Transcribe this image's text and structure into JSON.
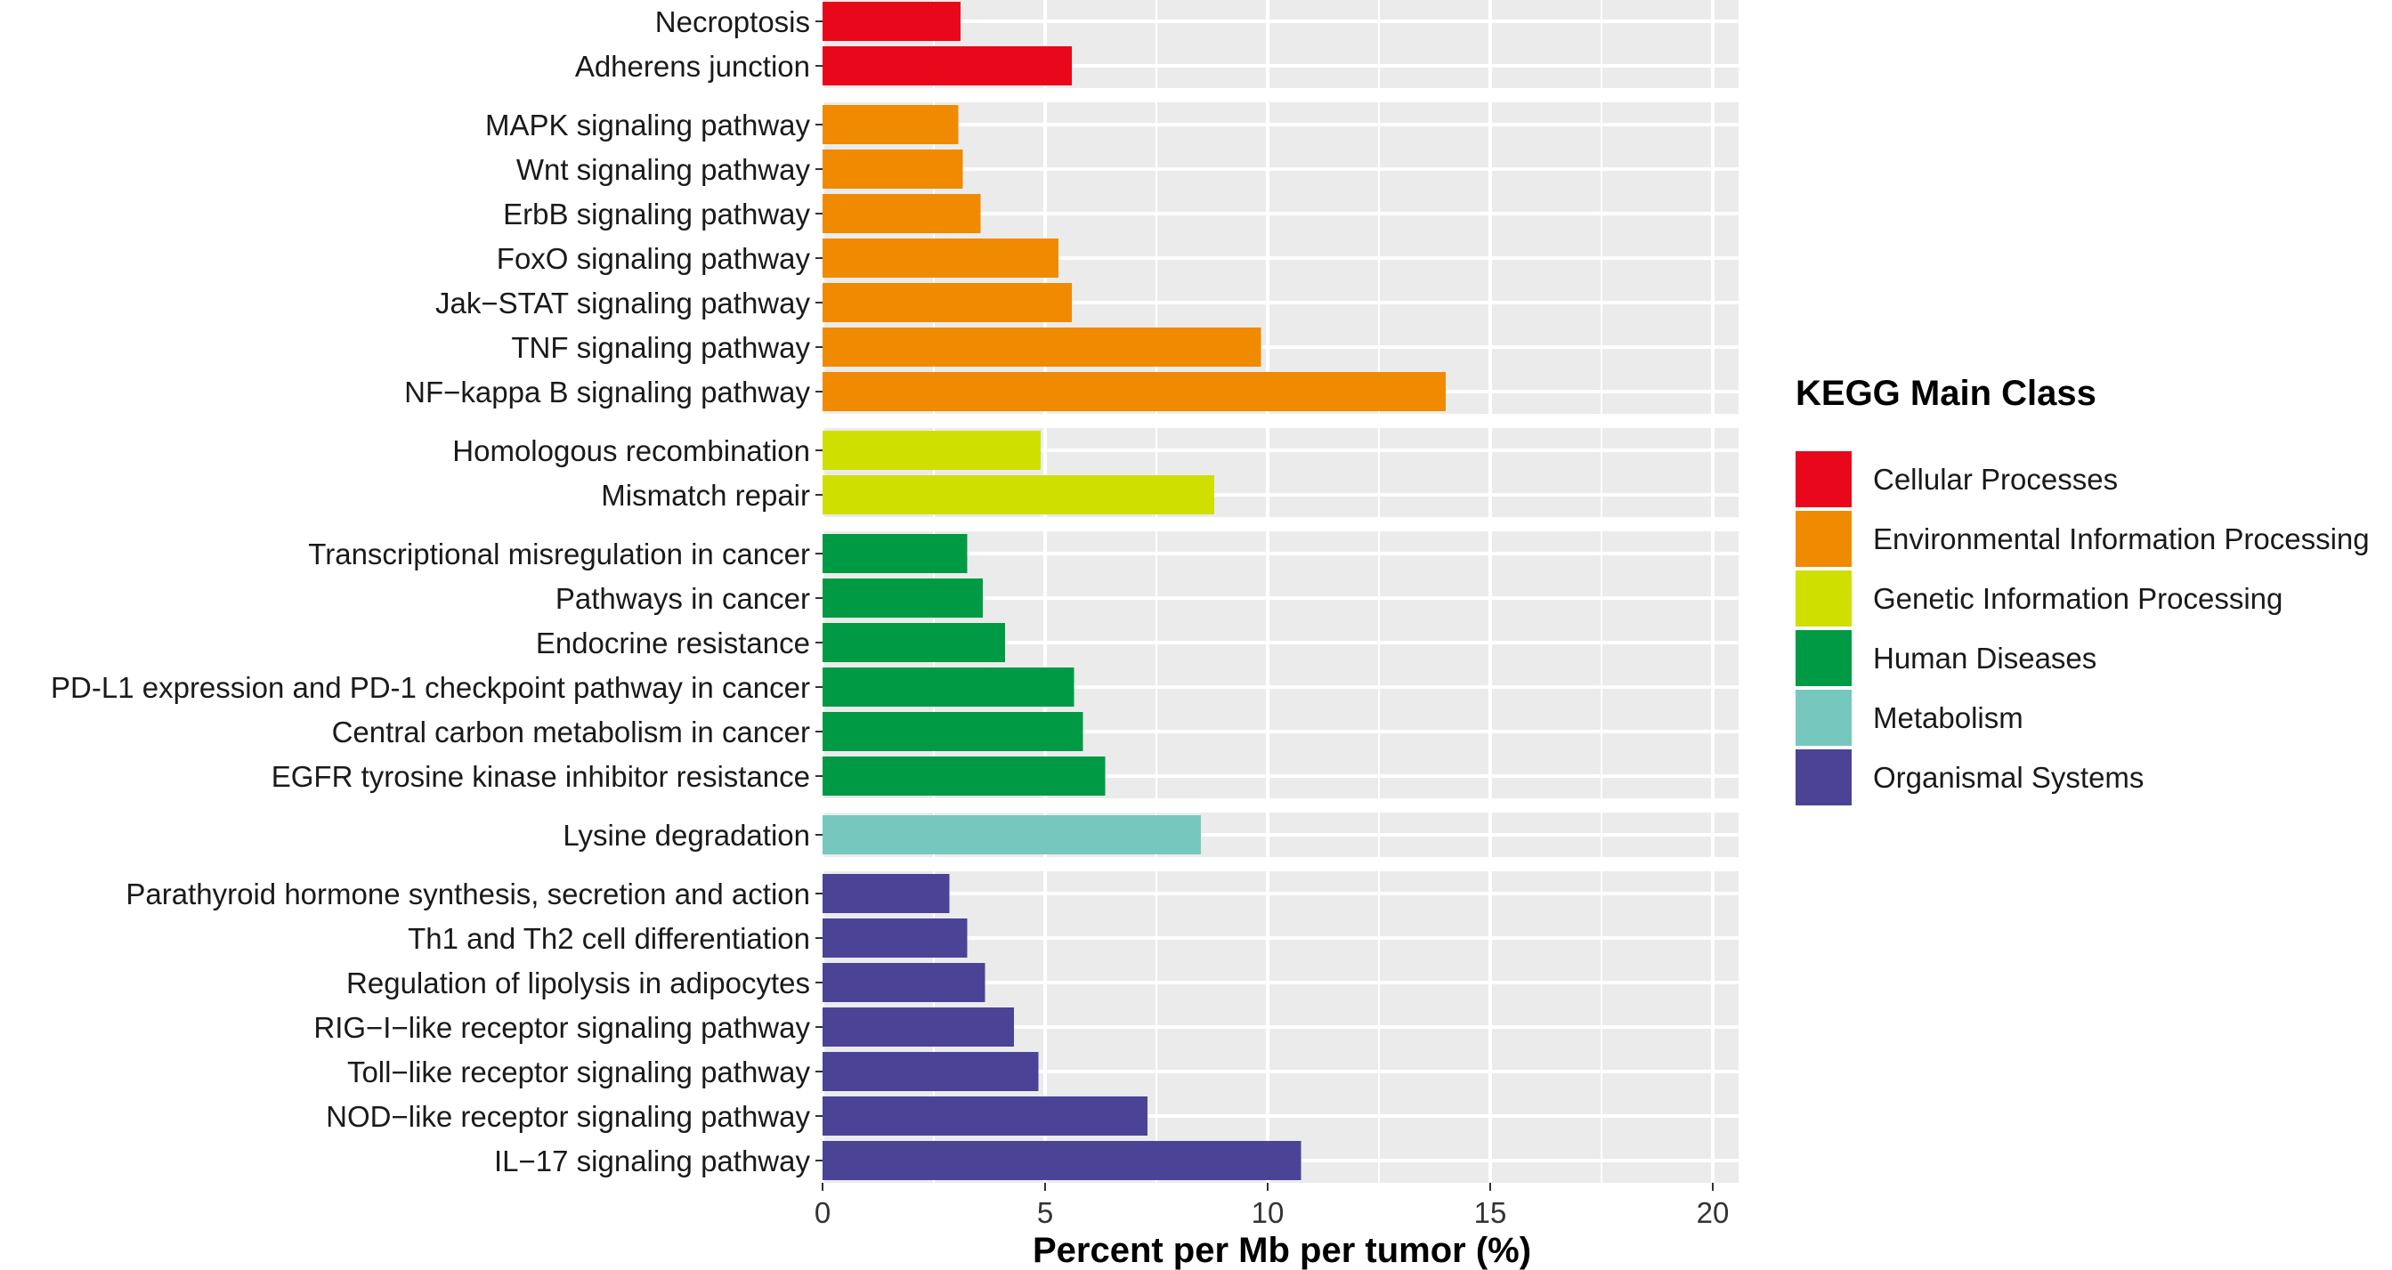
{
  "chart_data": {
    "type": "bar",
    "orientation": "horizontal",
    "xlabel": "Percent per Mb per tumor (%)",
    "xlim": [
      0,
      20.6
    ],
    "xticks": [
      0,
      5,
      10,
      15,
      20
    ],
    "legend": {
      "title": "KEGG Main Class",
      "placement": "right"
    },
    "classes": [
      {
        "name": "Cellular Processes",
        "color": "#e8071b"
      },
      {
        "name": "Environmental Information Processing",
        "color": "#f08a00"
      },
      {
        "name": "Genetic Information Processing",
        "color": "#cfdf00"
      },
      {
        "name": "Human Diseases",
        "color": "#009a44"
      },
      {
        "name": "Metabolism",
        "color": "#76c8be"
      },
      {
        "name": "Organismal Systems",
        "color": "#4a4396"
      }
    ],
    "groups": [
      {
        "class": "Cellular Processes",
        "bars": [
          {
            "label": "Necroptosis",
            "value": 3.1
          },
          {
            "label": "Adherens junction",
            "value": 5.6
          }
        ]
      },
      {
        "class": "Environmental Information Processing",
        "bars": [
          {
            "label": "MAPK signaling pathway",
            "value": 3.05
          },
          {
            "label": "Wnt signaling pathway",
            "value": 3.15
          },
          {
            "label": "ErbB signaling pathway",
            "value": 3.55
          },
          {
            "label": "FoxO signaling pathway",
            "value": 5.3
          },
          {
            "label": "Jak−STAT signaling pathway",
            "value": 5.6
          },
          {
            "label": "TNF signaling pathway",
            "value": 9.85
          },
          {
            "label": "NF−kappa B signaling pathway",
            "value": 14.0
          }
        ]
      },
      {
        "class": "Genetic Information Processing",
        "bars": [
          {
            "label": "Homologous recombination",
            "value": 4.9
          },
          {
            "label": "Mismatch repair",
            "value": 8.8
          }
        ]
      },
      {
        "class": "Human Diseases",
        "bars": [
          {
            "label": "Transcriptional misregulation in cancer",
            "value": 3.25
          },
          {
            "label": "Pathways in cancer",
            "value": 3.6
          },
          {
            "label": "Endocrine resistance",
            "value": 4.1
          },
          {
            "label": "PD-L1 expression and PD-1 checkpoint pathway in cancer",
            "value": 5.65
          },
          {
            "label": "Central carbon metabolism in cancer",
            "value": 5.85
          },
          {
            "label": "EGFR tyrosine kinase inhibitor resistance",
            "value": 6.35
          }
        ]
      },
      {
        "class": "Metabolism",
        "bars": [
          {
            "label": "Lysine degradation",
            "value": 8.5
          }
        ]
      },
      {
        "class": "Organismal Systems",
        "bars": [
          {
            "label": "Parathyroid hormone synthesis, secretion and action",
            "value": 2.85
          },
          {
            "label": "Th1 and Th2 cell differentiation",
            "value": 3.25
          },
          {
            "label": "Regulation of lipolysis in adipocytes",
            "value": 3.65
          },
          {
            "label": "RIG−I−like receptor signaling pathway",
            "value": 4.3
          },
          {
            "label": "Toll−like receptor signaling pathway",
            "value": 4.85
          },
          {
            "label": "NOD−like receptor signaling pathway",
            "value": 7.3
          },
          {
            "label": "IL−17 signaling pathway",
            "value": 10.75
          }
        ]
      }
    ]
  }
}
